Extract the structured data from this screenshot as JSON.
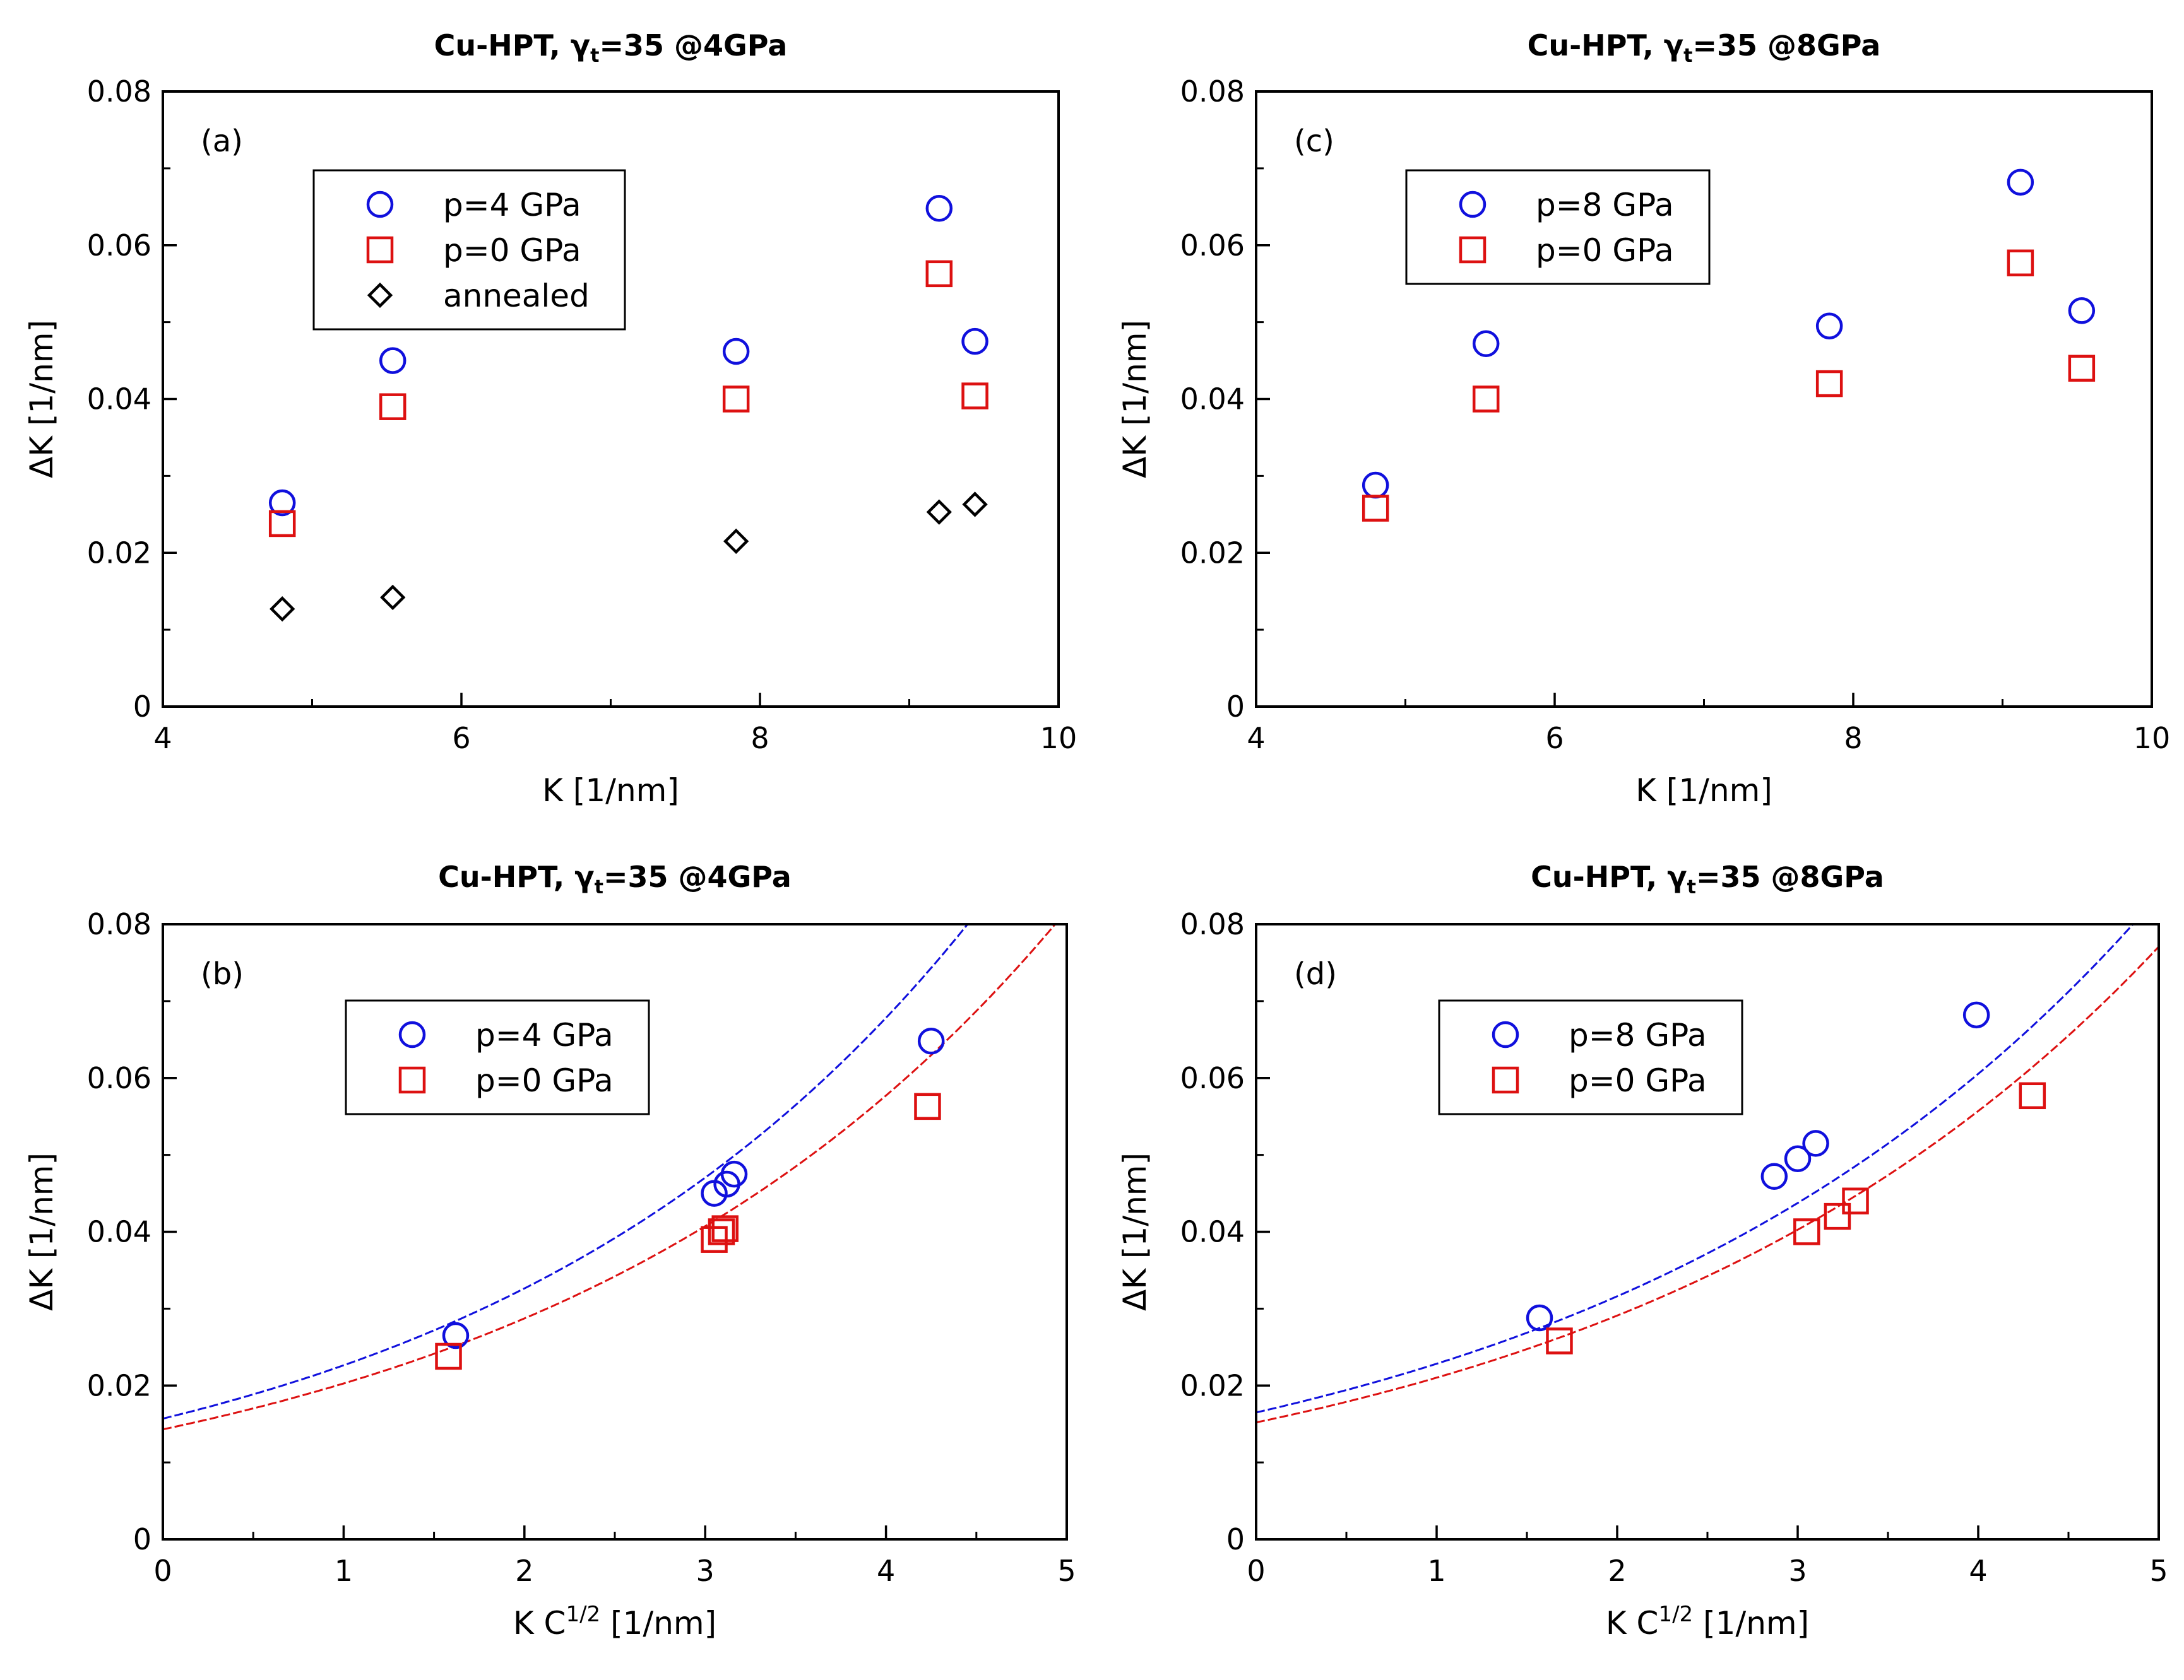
{
  "figure_label": "Cu-HPT williamson-hall panels",
  "colors": {
    "blue": "#1010dd",
    "red": "#dd1111",
    "black": "#000000"
  },
  "chart_data": [
    {
      "id": "a",
      "type": "scatter",
      "title": "Cu-HPT, γt=35 @4GPa",
      "title_main": "Cu-HPT, γ",
      "title_sub": "t",
      "title_rest": "=35 @4GPa",
      "panel_label": "(a)",
      "xlabel": "K [1/nm]",
      "xlabel_main": "K [1/nm]",
      "ylabel": "ΔK [1/nm]",
      "xlim": [
        4,
        10
      ],
      "ylim": [
        0,
        0.08
      ],
      "xticks": [
        4,
        6,
        8,
        10
      ],
      "xtick_labels": [
        "4",
        "6",
        "8",
        "10"
      ],
      "yticks": [
        0,
        0.02,
        0.04,
        0.06,
        0.08
      ],
      "ytick_labels": [
        "0",
        "0.02",
        "0.04",
        "0.06",
        "0.08"
      ],
      "x_minor_step": 1,
      "y_minor_step": 0.01,
      "legend_position": "upper-left",
      "series": [
        {
          "name": "p=4 GPa",
          "marker": "circle",
          "color": "#1010dd",
          "x": [
            4.8,
            5.54,
            7.84,
            9.2,
            9.44
          ],
          "y": [
            0.0265,
            0.045,
            0.0462,
            0.0648,
            0.0475
          ]
        },
        {
          "name": "p=0 GPa",
          "marker": "square",
          "color": "#dd1111",
          "x": [
            4.8,
            5.54,
            7.84,
            9.2,
            9.44
          ],
          "y": [
            0.0238,
            0.039,
            0.04,
            0.0563,
            0.0404
          ]
        },
        {
          "name": "annealed",
          "marker": "diamond",
          "color": "#000000",
          "x": [
            4.8,
            5.54,
            7.84,
            9.2,
            9.44
          ],
          "y": [
            0.0127,
            0.0142,
            0.0215,
            0.0253,
            0.0263
          ]
        }
      ],
      "curves": []
    },
    {
      "id": "c",
      "type": "scatter",
      "title": "Cu-HPT, γt=35 @8GPa",
      "title_main": "Cu-HPT, γ",
      "title_sub": "t",
      "title_rest": "=35 @8GPa",
      "panel_label": "(c)",
      "xlabel": "K [1/nm]",
      "xlabel_main": "K [1/nm]",
      "ylabel": "ΔK [1/nm]",
      "xlim": [
        4,
        10
      ],
      "ylim": [
        0,
        0.08
      ],
      "xticks": [
        4,
        6,
        8,
        10
      ],
      "xtick_labels": [
        "4",
        "6",
        "8",
        "10"
      ],
      "yticks": [
        0,
        0.02,
        0.04,
        0.06,
        0.08
      ],
      "ytick_labels": [
        "0",
        "0.02",
        "0.04",
        "0.06",
        "0.08"
      ],
      "x_minor_step": 1,
      "y_minor_step": 0.01,
      "legend_position": "upper-left",
      "series": [
        {
          "name": "p=8 GPa",
          "marker": "circle",
          "color": "#1010dd",
          "x": [
            4.8,
            5.54,
            7.84,
            9.12,
            9.53
          ],
          "y": [
            0.0288,
            0.0472,
            0.0495,
            0.0682,
            0.0515
          ]
        },
        {
          "name": "p=0 GPa",
          "marker": "square",
          "color": "#dd1111",
          "x": [
            4.8,
            5.54,
            7.84,
            9.12,
            9.53
          ],
          "y": [
            0.0258,
            0.04,
            0.042,
            0.0577,
            0.044
          ]
        }
      ],
      "curves": []
    },
    {
      "id": "b",
      "type": "scatter",
      "title": "Cu-HPT, γt=35 @4GPa",
      "title_main": "Cu-HPT, γ",
      "title_sub": "t",
      "title_rest": "=35 @4GPa",
      "panel_label": "(b)",
      "xlabel": "K C1/2 [1/nm]",
      "xlabel_main": "K C",
      "xlabel_sup": "1/2",
      "xlabel_rest": " [1/nm]",
      "ylabel": "ΔK [1/nm]",
      "xlim": [
        0,
        5
      ],
      "ylim": [
        0,
        0.08
      ],
      "xticks": [
        0,
        1,
        2,
        3,
        4,
        5
      ],
      "xtick_labels": [
        "0",
        "1",
        "2",
        "3",
        "4",
        "5"
      ],
      "yticks": [
        0,
        0.02,
        0.04,
        0.06,
        0.08
      ],
      "ytick_labels": [
        "0",
        "0.02",
        "0.04",
        "0.06",
        "0.08"
      ],
      "x_minor_step": 0.5,
      "y_minor_step": 0.01,
      "legend_position": "upper-center",
      "series": [
        {
          "name": "p=4 GPa",
          "marker": "circle",
          "color": "#1010dd",
          "x": [
            1.62,
            3.05,
            3.12,
            3.16,
            4.25
          ],
          "y": [
            0.0265,
            0.045,
            0.0462,
            0.0475,
            0.0648
          ]
        },
        {
          "name": "p=0 GPa",
          "marker": "square",
          "color": "#dd1111",
          "x": [
            1.58,
            3.05,
            3.09,
            3.11,
            4.23
          ],
          "y": [
            0.0238,
            0.039,
            0.04,
            0.0404,
            0.0563
          ]
        }
      ],
      "curves": [
        {
          "color": "#1010dd",
          "a": 0.0157,
          "b": 0.1085,
          "c": 0.0186
        },
        {
          "color": "#dd1111",
          "a": 0.0143,
          "b": 0.1046,
          "c": 0.0141
        }
      ]
    },
    {
      "id": "d",
      "type": "scatter",
      "title": "Cu-HPT, γt=35 @8GPa",
      "title_main": "Cu-HPT, γ",
      "title_sub": "t",
      "title_rest": "=35 @8GPa",
      "panel_label": "(d)",
      "xlabel": "K C1/2 [1/nm]",
      "xlabel_main": "K C",
      "xlabel_sup": "1/2",
      "xlabel_rest": " [1/nm]",
      "ylabel": "ΔK [1/nm]",
      "xlim": [
        0,
        5
      ],
      "ylim": [
        0,
        0.08
      ],
      "xticks": [
        0,
        1,
        2,
        3,
        4,
        5
      ],
      "xtick_labels": [
        "0",
        "1",
        "2",
        "3",
        "4",
        "5"
      ],
      "yticks": [
        0,
        0.02,
        0.04,
        0.06,
        0.08
      ],
      "ytick_labels": [
        "0",
        "0.02",
        "0.04",
        "0.06",
        "0.08"
      ],
      "x_minor_step": 0.5,
      "y_minor_step": 0.01,
      "legend_position": "upper-center",
      "series": [
        {
          "name": "p=8 GPa",
          "marker": "circle",
          "color": "#1010dd",
          "x": [
            1.57,
            2.87,
            3.0,
            3.1,
            3.99
          ],
          "y": [
            0.0288,
            0.0472,
            0.0495,
            0.0515,
            0.0682
          ]
        },
        {
          "name": "p=0 GPa",
          "marker": "square",
          "color": "#dd1111",
          "x": [
            1.68,
            3.05,
            3.22,
            3.32,
            4.3
          ],
          "y": [
            0.0258,
            0.04,
            0.042,
            0.044,
            0.0577
          ]
        }
      ],
      "curves": [
        {
          "color": "#1010dd",
          "a": 0.0165,
          "b": 0.0905,
          "c": 0.0354
        },
        {
          "color": "#dd1111",
          "a": 0.0152,
          "b": 0.097,
          "c": 0.0143
        }
      ]
    }
  ]
}
